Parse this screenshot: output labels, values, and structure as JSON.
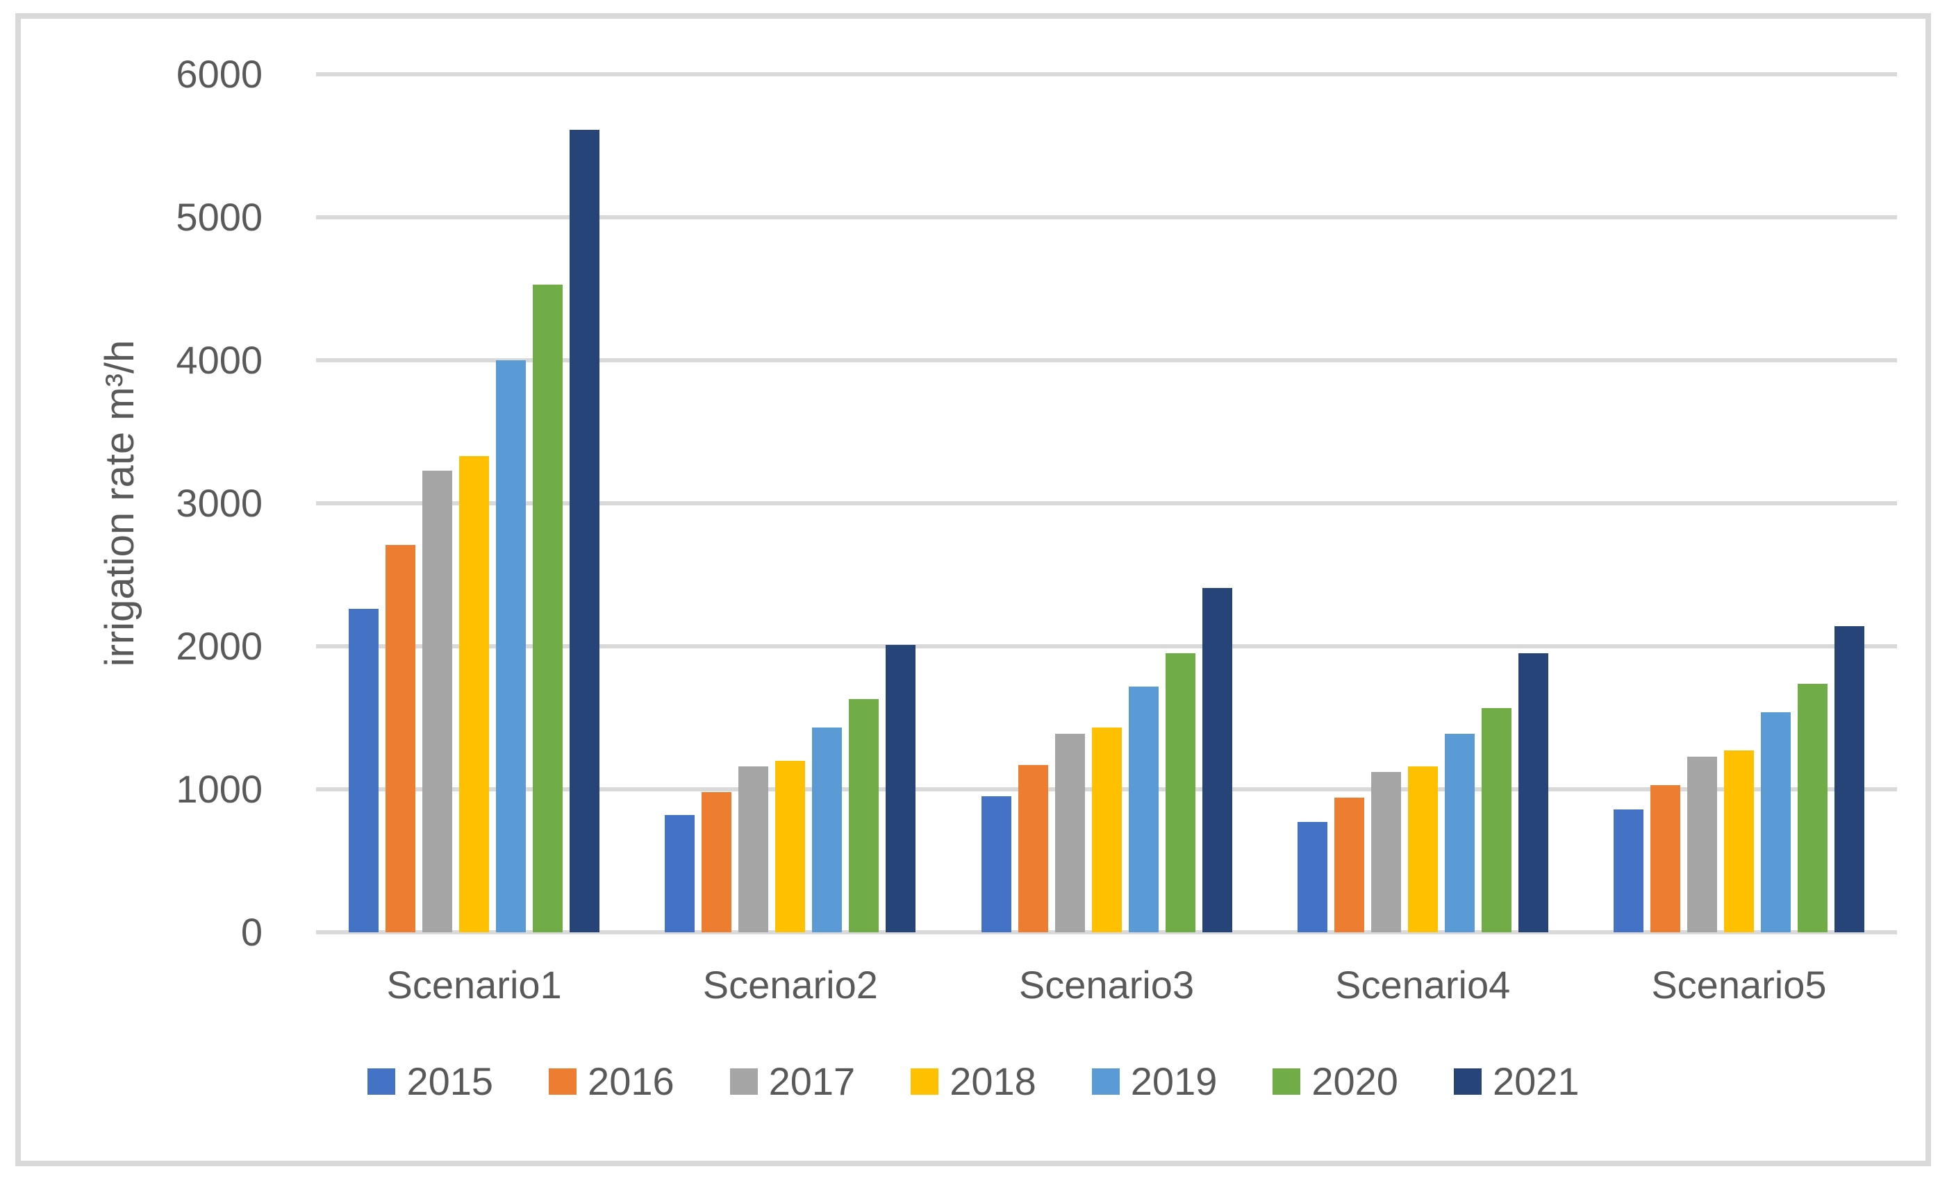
{
  "theme": {
    "background": "#FFFFFF",
    "frame_border": "#D9D9D9",
    "gridline": "#D9D9D9",
    "text": "#595959"
  },
  "chart_data": {
    "type": "bar",
    "title": "",
    "xlabel": "",
    "ylabel": "irrigation rate m³/h",
    "ylim": [
      0,
      6000
    ],
    "ytick_step": 1000,
    "yticks": [
      "6000",
      "5000",
      "4000",
      "3000",
      "2000",
      "1000",
      "0"
    ],
    "grid": "horizontal",
    "legend_position": "bottom",
    "categories": [
      "Scenario1",
      "Scenario2",
      "Scenario3",
      "Scenario4",
      "Scenario5"
    ],
    "series": [
      {
        "name": "2015",
        "color": "#4472C4",
        "values": [
          2260,
          820,
          950,
          770,
          860
        ]
      },
      {
        "name": "2016",
        "color": "#ED7D31",
        "values": [
          2710,
          980,
          1170,
          940,
          1030
        ]
      },
      {
        "name": "2017",
        "color": "#A5A5A5",
        "values": [
          3230,
          1160,
          1390,
          1120,
          1230
        ]
      },
      {
        "name": "2018",
        "color": "#FFC000",
        "values": [
          3330,
          1200,
          1430,
          1160,
          1270
        ]
      },
      {
        "name": "2019",
        "color": "#5B9BD5",
        "values": [
          4000,
          1430,
          1720,
          1390,
          1540
        ]
      },
      {
        "name": "2020",
        "color": "#70AD47",
        "values": [
          4530,
          1630,
          1950,
          1570,
          1740
        ]
      },
      {
        "name": "2021",
        "color": "#264478",
        "values": [
          5610,
          2010,
          2410,
          1950,
          2140
        ]
      }
    ]
  }
}
